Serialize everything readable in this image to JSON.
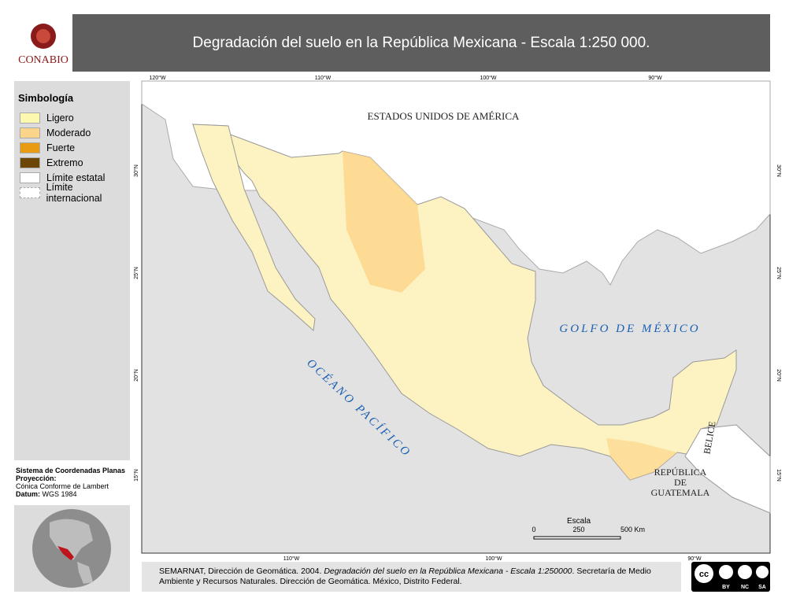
{
  "header": {
    "logo": "CONABIO",
    "title": "Degradación del suelo en la República Mexicana - Escala 1:250 000."
  },
  "legend": {
    "title": "Simbología",
    "items": [
      {
        "label": "Ligero",
        "color": "#fdf8b0"
      },
      {
        "label": "Moderado",
        "color": "#fcd48a"
      },
      {
        "label": "Fuerte",
        "color": "#e89c14"
      },
      {
        "label": "Extremo",
        "color": "#6e4508"
      },
      {
        "label": "Límite estatal",
        "color": "#ffffff"
      },
      {
        "label": "Límite internacional",
        "color": "#ffffff"
      }
    ]
  },
  "projection": {
    "title": "Sistema de Coordenadas Planas",
    "projection_label": "Proyección:",
    "projection": "Cónica Conforme de Lambert",
    "datum_label": "Datum:",
    "datum": "WGS 1984"
  },
  "map": {
    "top_ticks": [
      "120°W",
      "110°W",
      "100°W",
      "90°W"
    ],
    "bottom_ticks": [
      "110°W",
      "100°W",
      "90°W"
    ],
    "left_ticks": [
      "30°N",
      "25°N",
      "20°N",
      "15°N"
    ],
    "right_ticks": [
      "30°N",
      "25°N",
      "20°N",
      "15°N"
    ],
    "places": {
      "usa": "ESTADOS UNIDOS DE AMÉRICA",
      "gulf": "GOLFO DE MÉXICO",
      "pacific": "OCÉANO PACÍFICO",
      "belize": "BELICE",
      "guatemala": [
        "REPÚBLICA",
        "DE",
        "GUATEMALA"
      ]
    },
    "scale": {
      "title": "Escala",
      "ticks": [
        "0",
        "250",
        "500 Km"
      ]
    }
  },
  "citation": {
    "part1": "SEMARNAT, Dirección de Geomática. 2004. ",
    "italic": "Degradación del suelo en la República Mexicana - Escala 1:250000",
    "part2": ". Secretaría de Medio Ambiente y Recursos Naturales. Dirección de Geomática. México, Distrito Federal."
  },
  "license": [
    "BY",
    "NC",
    "SA"
  ]
}
